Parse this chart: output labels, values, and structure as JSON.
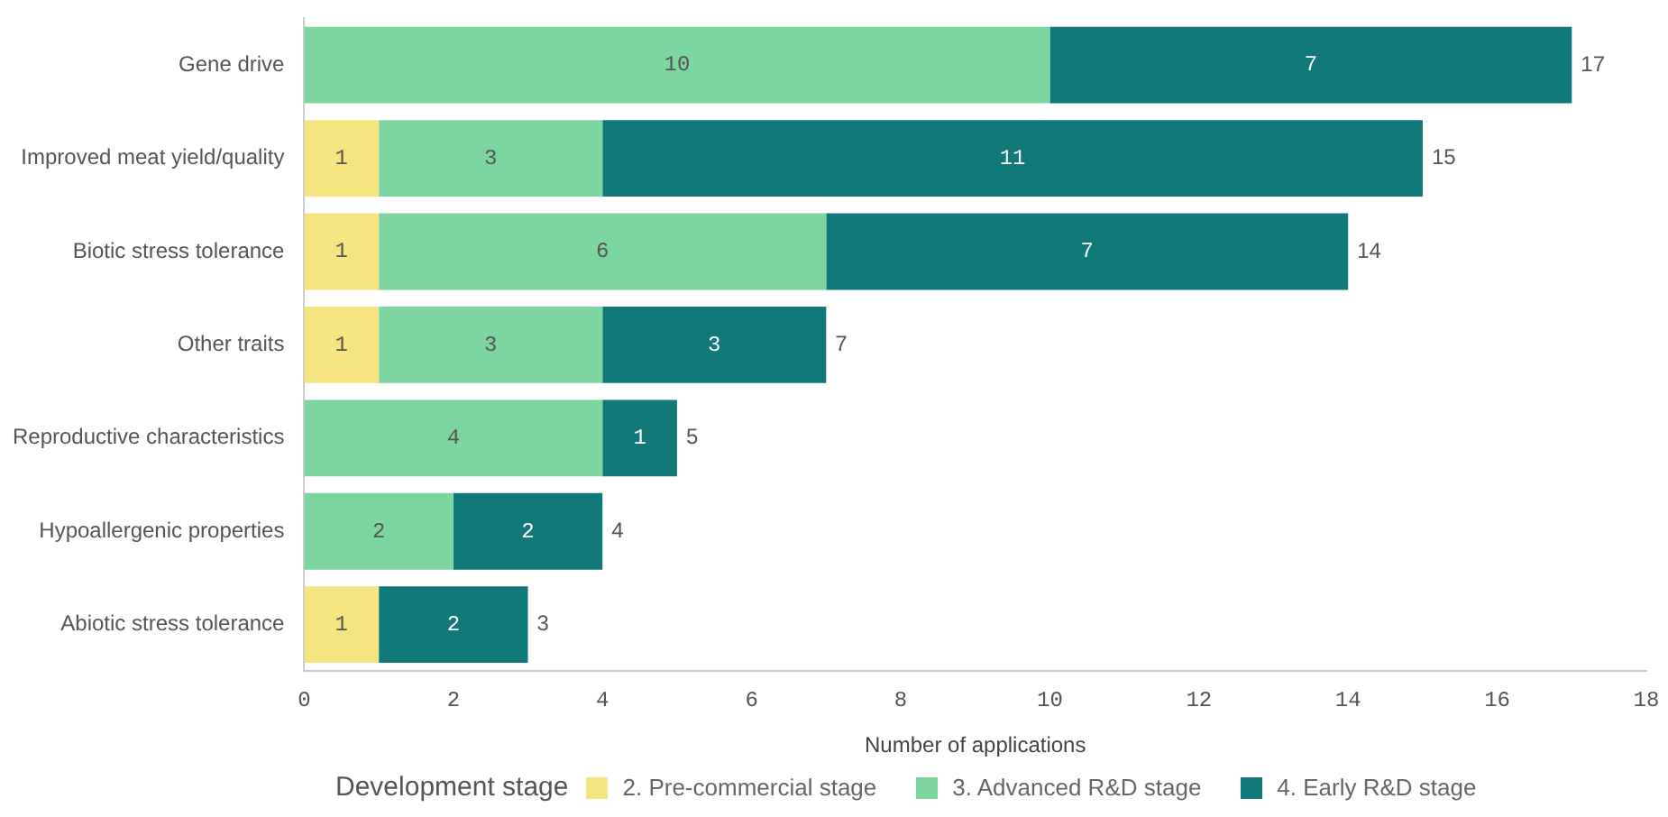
{
  "chart_data": {
    "type": "bar",
    "orientation": "horizontal",
    "stacked": true,
    "xlabel": "Number of applications",
    "legend_title": "Development stage",
    "legend": "bottom",
    "grid": false,
    "data_labels": true,
    "categories": [
      "Gene drive",
      "Improved meat yield/quality",
      "Biotic stress tolerance",
      "Other traits",
      "Reproductive characteristics",
      "Hypoallergenic properties",
      "Abiotic stress tolerance"
    ],
    "series": [
      {
        "name": "2. Pre-commercial stage",
        "color": "#f5e47f",
        "values": [
          null,
          1,
          1,
          1,
          null,
          null,
          1
        ]
      },
      {
        "name": "3. Advanced R&D stage",
        "color": "#7dd5a0",
        "values": [
          10,
          3,
          6,
          3,
          4,
          2,
          null
        ]
      },
      {
        "name": "4. Early R&D stage",
        "color": "#12797b",
        "values": [
          7,
          11,
          7,
          3,
          1,
          2,
          2
        ]
      }
    ],
    "totals": [
      "17",
      "15",
      "14",
      "7",
      "5",
      "4",
      "3"
    ],
    "xlim": [
      0,
      18
    ],
    "xticks": [
      0,
      2,
      4,
      6,
      8,
      10,
      12,
      14,
      16,
      18
    ]
  }
}
